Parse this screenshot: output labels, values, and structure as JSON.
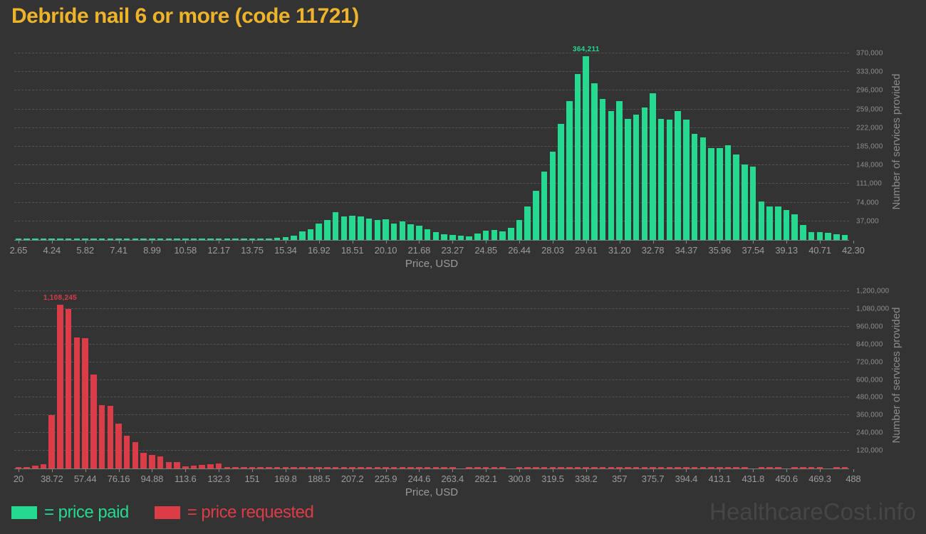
{
  "title": "Debride nail 6 or more (code 11721)",
  "watermark": "HealthcareCost.info",
  "legend": {
    "paid": "= price paid",
    "requested": "= price requested"
  },
  "colors": {
    "background": "#333333",
    "paid": "#25d990",
    "requested": "#dc3c48",
    "title": "#edb32a",
    "axis_text": "#9b9b9b",
    "grid_text": "#8f8f8f",
    "gridline": "#545454",
    "watermark": "#464646"
  },
  "chart_data": [
    {
      "type": "bar",
      "name": "price paid",
      "color": "#25d990",
      "xlabel": "Price, USD",
      "ylabel": "Number of services provided",
      "grid": true,
      "legend_position": "bottom",
      "xlim": [
        2.65,
        42.3
      ],
      "ylim": [
        0,
        391000
      ],
      "bin_start": 2.65,
      "bin_width": 0.3965,
      "x_tick_labels": [
        "2.65",
        "4.24",
        "5.82",
        "7.41",
        "8.99",
        "10.58",
        "12.17",
        "13.75",
        "15.34",
        "16.92",
        "18.51",
        "20.10",
        "21.68",
        "23.27",
        "24.85",
        "26.44",
        "28.03",
        "29.61",
        "31.20",
        "32.78",
        "34.37",
        "35.96",
        "37.54",
        "39.13",
        "40.71",
        "42.30"
      ],
      "y_gridline_values": [
        37000,
        74000,
        111000,
        148000,
        185000,
        222000,
        259000,
        296000,
        333000,
        370000
      ],
      "y_gridline_labels": [
        "37,000",
        "74,000",
        "111,000",
        "148,000",
        "185,000",
        "222,000",
        "259,000",
        "296,000",
        "333,000",
        "370,000"
      ],
      "peak_label": "364,211",
      "peak_value": 364211,
      "values": [
        2600,
        1100,
        600,
        1500,
        2600,
        1100,
        600,
        1800,
        2400,
        900,
        500,
        1400,
        3200,
        1900,
        700,
        1000,
        2400,
        1300,
        1900,
        1400,
        2000,
        1400,
        2400,
        1500,
        2100,
        2500,
        1400,
        2000,
        2900,
        2400,
        3400,
        3900,
        5200,
        8500,
        17000,
        21000,
        33000,
        40000,
        55500,
        46500,
        48500,
        47000,
        42000,
        39500,
        41500,
        33000,
        37000,
        30500,
        28500,
        21500,
        15500,
        11000,
        10000,
        9000,
        7500,
        13000,
        18000,
        19500,
        17000,
        24000,
        40000,
        66000,
        98000,
        135000,
        175000,
        230000,
        275000,
        329000,
        364211,
        310000,
        280000,
        255000,
        275000,
        240000,
        249000,
        262000,
        291000,
        240000,
        239000,
        256000,
        239000,
        210000,
        203000,
        182000,
        182000,
        188000,
        170000,
        150000,
        145000,
        76000,
        66000,
        67000,
        59000,
        51000,
        29000,
        15000,
        15500,
        14500,
        12000,
        9500
      ]
    },
    {
      "type": "bar",
      "name": "price requested",
      "color": "#dc3c48",
      "xlabel": "Price, USD",
      "ylabel": "Number of services provided",
      "grid": true,
      "legend_position": "bottom",
      "xlim": [
        20,
        488
      ],
      "ylim": [
        0,
        1268000
      ],
      "bin_start": 20,
      "bin_width": 4.68,
      "x_tick_labels": [
        "20",
        "38.72",
        "57.44",
        "76.16",
        "94.88",
        "113.6",
        "132.3",
        "151",
        "169.8",
        "188.5",
        "207.2",
        "225.9",
        "244.6",
        "263.4",
        "282.1",
        "300.8",
        "319.5",
        "338.2",
        "357",
        "375.7",
        "394.4",
        "413.1",
        "431.8",
        "450.6",
        "469.3",
        "488"
      ],
      "y_gridline_values": [
        120000,
        240000,
        360000,
        480000,
        600000,
        720000,
        840000,
        960000,
        1080000,
        1200000
      ],
      "y_gridline_labels": [
        "120,000",
        "240,000",
        "360,000",
        "480,000",
        "600,000",
        "720,000",
        "840,000",
        "960,000",
        "1,080,000",
        "1,200,000"
      ],
      "peak_label": "1,108,245",
      "peak_value": 1108245,
      "values": [
        4000,
        6500,
        18000,
        30000,
        361000,
        1108245,
        1080000,
        886000,
        884000,
        635000,
        428000,
        424000,
        304000,
        222000,
        178000,
        107000,
        91000,
        83000,
        43000,
        45000,
        15000,
        20000,
        26000,
        30000,
        33000,
        8000,
        10000,
        9000,
        12000,
        11000,
        9500,
        7000,
        6000,
        5000,
        4500,
        6000,
        4000,
        3500,
        4000,
        3000,
        3500,
        3000,
        2500,
        3000,
        4000,
        2500,
        2000,
        2500,
        5000,
        4500,
        2000,
        2500,
        2000,
        0,
        2000,
        1500,
        2500,
        2000,
        1500,
        0,
        4500,
        2000,
        5500,
        2000,
        1500,
        3500,
        2500,
        1500,
        2000,
        1000,
        6000,
        5000,
        1500,
        1000,
        2000,
        1500,
        7000,
        6500,
        1000,
        1500,
        2500,
        1000,
        1500,
        5500,
        2000,
        1000,
        1500,
        1000,
        0,
        1000,
        1500,
        1000,
        0,
        1000,
        6000,
        1500,
        1000,
        0,
        1000,
        5500
      ]
    }
  ]
}
